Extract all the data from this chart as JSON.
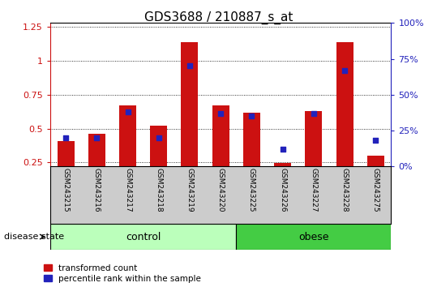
{
  "title": "GDS3688 / 210887_s_at",
  "samples": [
    "GSM243215",
    "GSM243216",
    "GSM243217",
    "GSM243218",
    "GSM243219",
    "GSM243220",
    "GSM243225",
    "GSM243226",
    "GSM243227",
    "GSM243228",
    "GSM243275"
  ],
  "red_values": [
    0.41,
    0.46,
    0.67,
    0.52,
    1.14,
    0.67,
    0.62,
    0.245,
    0.63,
    1.14,
    0.3
  ],
  "blue_pct": [
    20,
    20,
    38,
    20,
    70,
    37,
    35,
    12,
    37,
    67,
    18
  ],
  "n_control": 6,
  "n_obese": 5,
  "ylim_left": [
    0.22,
    1.28
  ],
  "ylim_right": [
    0,
    100
  ],
  "yticks_left": [
    0.25,
    0.5,
    0.75,
    1.0,
    1.25
  ],
  "ytick_labels_left": [
    "0.25",
    "0.5",
    "0.75",
    "1",
    "1.25"
  ],
  "yticks_right": [
    0,
    25,
    50,
    75,
    100
  ],
  "ytick_labels_right": [
    "0%",
    "25%",
    "50%",
    "75%",
    "100%"
  ],
  "bar_bottom": 0.22,
  "red_color": "#cc1111",
  "blue_color": "#2222bb",
  "control_color": "#bbffbb",
  "obese_color": "#44cc44",
  "label_bg": "#cccccc",
  "bar_width": 0.55
}
